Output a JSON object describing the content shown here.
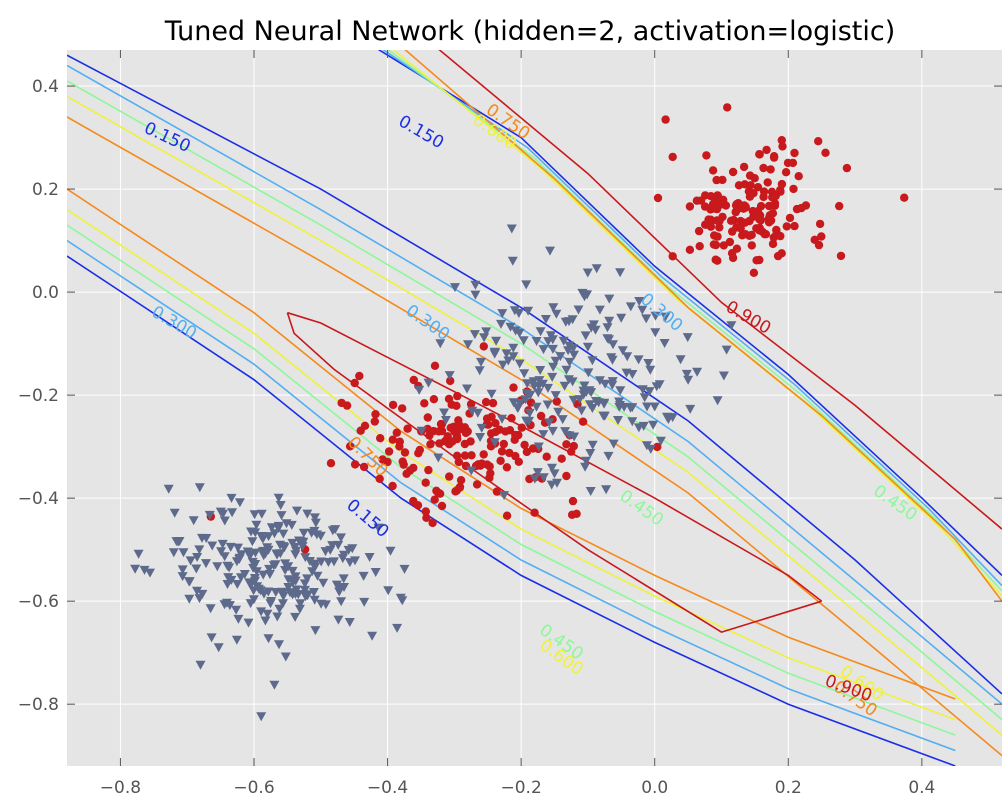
{
  "chart_data": {
    "type": "scatter",
    "title": "Tuned Neural Network (hidden=2, activation=logistic)",
    "xlabel": "",
    "ylabel": "",
    "xlim": [
      -0.88,
      0.52
    ],
    "ylim": [
      -0.92,
      0.47
    ],
    "x_ticks": [
      -0.8,
      -0.6,
      -0.4,
      -0.2,
      0.0,
      0.2,
      0.4
    ],
    "y_ticks": [
      -0.8,
      -0.6,
      -0.4,
      -0.2,
      0.0,
      0.2,
      0.4
    ],
    "x_tick_labels": [
      "−0.8",
      "−0.6",
      "−0.4",
      "−0.2",
      "0.0",
      "0.2",
      "0.4"
    ],
    "y_tick_labels": [
      "−0.8",
      "−0.6",
      "−0.4",
      "−0.2",
      "0.0",
      "0.2",
      "0.4"
    ],
    "grid": true,
    "background": "#e5e5e5",
    "series": [
      {
        "marker": "circle",
        "color": "#c8191d",
        "clusters": [
          {
            "center": [
              0.14,
              0.16
            ],
            "spread": [
              0.06,
              0.06
            ],
            "count": 160
          },
          {
            "center": [
              -0.28,
              -0.29
            ],
            "spread": [
              0.09,
              0.06
            ],
            "count": 170
          }
        ]
      },
      {
        "marker": "triangle-down",
        "color": "#5d6a8c",
        "clusters": [
          {
            "center": [
              -0.57,
              -0.54
            ],
            "spread": [
              0.085,
              0.07
            ],
            "count": 230
          },
          {
            "center": [
              -0.13,
              -0.16
            ],
            "spread": [
              0.09,
              0.1
            ],
            "count": 220
          }
        ]
      }
    ],
    "contours": [
      {
        "level": 0.15,
        "label": "0.150",
        "color": "#1a2ee6",
        "lines": [
          {
            "points": [
              [
                -0.88,
                0.46
              ],
              [
                -0.5,
                0.2
              ],
              [
                -0.2,
                -0.03
              ],
              [
                0.05,
                -0.25
              ],
              [
                0.3,
                -0.52
              ],
              [
                0.52,
                -0.78
              ]
            ]
          },
          {
            "points": [
              [
                -0.88,
                0.07
              ],
              [
                -0.6,
                -0.17
              ],
              [
                -0.38,
                -0.4
              ],
              [
                -0.2,
                -0.55
              ],
              [
                0.0,
                -0.68
              ],
              [
                0.2,
                -0.8
              ],
              [
                0.45,
                -0.92
              ]
            ]
          },
          {
            "points": [
              [
                -0.45,
                0.5
              ],
              [
                -0.2,
                0.3
              ],
              [
                0.0,
                0.05
              ],
              [
                0.2,
                -0.16
              ],
              [
                0.4,
                -0.4
              ],
              [
                0.52,
                -0.55
              ]
            ]
          }
        ]
      },
      {
        "level": 0.3,
        "label": "0.300",
        "color": "#53aef2",
        "lines": [
          {
            "points": [
              [
                -0.88,
                0.44
              ],
              [
                -0.5,
                0.16
              ],
              [
                -0.2,
                -0.07
              ],
              [
                0.05,
                -0.29
              ],
              [
                0.3,
                -0.56
              ],
              [
                0.52,
                -0.8
              ]
            ]
          },
          {
            "points": [
              [
                -0.88,
                0.1
              ],
              [
                -0.6,
                -0.14
              ],
              [
                -0.38,
                -0.37
              ],
              [
                -0.2,
                -0.52
              ],
              [
                0.0,
                -0.65
              ],
              [
                0.2,
                -0.77
              ],
              [
                0.45,
                -0.89
              ]
            ]
          },
          {
            "points": [
              [
                -0.44,
                0.5
              ],
              [
                -0.19,
                0.28
              ],
              [
                0.01,
                0.03
              ],
              [
                0.21,
                -0.18
              ],
              [
                0.41,
                -0.42
              ],
              [
                0.52,
                -0.57
              ]
            ]
          }
        ]
      },
      {
        "level": 0.45,
        "label": "0.450",
        "color": "#8ef79a",
        "lines": [
          {
            "points": [
              [
                -0.88,
                0.41
              ],
              [
                -0.5,
                0.13
              ],
              [
                -0.2,
                -0.1
              ],
              [
                0.05,
                -0.32
              ],
              [
                0.3,
                -0.59
              ],
              [
                0.52,
                -0.83
              ]
            ]
          },
          {
            "points": [
              [
                -0.88,
                0.13
              ],
              [
                -0.6,
                -0.11
              ],
              [
                -0.38,
                -0.34
              ],
              [
                -0.2,
                -0.49
              ],
              [
                0.0,
                -0.62
              ],
              [
                0.2,
                -0.74
              ],
              [
                0.45,
                -0.86
              ]
            ]
          },
          {
            "points": [
              [
                -0.43,
                0.5
              ],
              [
                -0.18,
                0.26
              ],
              [
                0.02,
                0.01
              ],
              [
                0.22,
                -0.2
              ],
              [
                0.42,
                -0.44
              ],
              [
                0.52,
                -0.58
              ]
            ]
          }
        ]
      },
      {
        "level": 0.6,
        "label": "0.600",
        "color": "#eef23c",
        "lines": [
          {
            "points": [
              [
                -0.88,
                0.38
              ],
              [
                -0.5,
                0.1
              ],
              [
                -0.2,
                -0.13
              ],
              [
                0.05,
                -0.35
              ],
              [
                0.3,
                -0.62
              ],
              [
                0.52,
                -0.86
              ]
            ]
          },
          {
            "points": [
              [
                -0.88,
                0.16
              ],
              [
                -0.6,
                -0.08
              ],
              [
                -0.38,
                -0.31
              ],
              [
                -0.2,
                -0.46
              ],
              [
                0.0,
                -0.59
              ],
              [
                0.2,
                -0.71
              ],
              [
                0.45,
                -0.83
              ]
            ]
          },
          {
            "points": [
              [
                -0.42,
                0.5
              ],
              [
                -0.17,
                0.24
              ],
              [
                0.03,
                -0.01
              ],
              [
                0.23,
                -0.22
              ],
              [
                0.43,
                -0.46
              ],
              [
                0.52,
                -0.59
              ]
            ]
          }
        ]
      },
      {
        "level": 0.75,
        "label": "0.750",
        "color": "#f5891b",
        "lines": [
          {
            "points": [
              [
                -0.88,
                0.34
              ],
              [
                -0.5,
                0.06
              ],
              [
                -0.2,
                -0.17
              ],
              [
                0.05,
                -0.39
              ],
              [
                0.3,
                -0.66
              ],
              [
                0.52,
                -0.9
              ]
            ]
          },
          {
            "points": [
              [
                -0.88,
                0.2
              ],
              [
                -0.6,
                -0.04
              ],
              [
                -0.38,
                -0.27
              ],
              [
                -0.2,
                -0.42
              ],
              [
                0.0,
                -0.55
              ],
              [
                0.2,
                -0.67
              ],
              [
                0.45,
                -0.79
              ]
            ]
          },
          {
            "points": [
              [
                -0.4,
                0.5
              ],
              [
                -0.15,
                0.22
              ],
              [
                0.05,
                -0.03
              ],
              [
                0.25,
                -0.24
              ],
              [
                0.45,
                -0.48
              ],
              [
                0.52,
                -0.6
              ]
            ]
          }
        ]
      },
      {
        "level": 0.9,
        "label": "0.900",
        "color": "#c8191d",
        "lines": [
          {
            "points": [
              [
                -0.55,
                -0.04
              ],
              [
                -0.5,
                -0.06
              ],
              [
                -0.38,
                -0.14
              ],
              [
                -0.2,
                -0.26
              ],
              [
                0.0,
                -0.4
              ],
              [
                0.2,
                -0.55
              ],
              [
                0.25,
                -0.6
              ]
            ]
          },
          {
            "points": [
              [
                0.25,
                -0.6
              ],
              [
                0.1,
                -0.66
              ],
              [
                -0.1,
                -0.5
              ],
              [
                -0.3,
                -0.32
              ],
              [
                -0.48,
                -0.15
              ],
              [
                -0.54,
                -0.08
              ],
              [
                -0.55,
                -0.04
              ]
            ]
          },
          {
            "points": [
              [
                -0.35,
                0.5
              ],
              [
                -0.1,
                0.23
              ],
              [
                0.1,
                -0.02
              ],
              [
                0.3,
                -0.22
              ],
              [
                0.52,
                -0.46
              ]
            ]
          }
        ]
      }
    ],
    "contour_labels": [
      {
        "text": "0.150",
        "at": [
          -0.73,
          0.3
        ],
        "angle": 25,
        "color": "#1a2ee6"
      },
      {
        "text": "0.150",
        "at": [
          -0.35,
          0.31
        ],
        "angle": 30,
        "color": "#1a2ee6"
      },
      {
        "text": "0.150",
        "at": [
          -0.43,
          -0.44
        ],
        "angle": 40,
        "color": "#1a2ee6"
      },
      {
        "text": "0.300",
        "at": [
          -0.72,
          -0.06
        ],
        "angle": 30,
        "color": "#53aef2"
      },
      {
        "text": "0.300",
        "at": [
          -0.34,
          -0.06
        ],
        "angle": 35,
        "color": "#53aef2"
      },
      {
        "text": "0.300",
        "at": [
          0.01,
          -0.04
        ],
        "angle": 40,
        "color": "#53aef2"
      },
      {
        "text": "0.450",
        "at": [
          -0.02,
          -0.42
        ],
        "angle": 35,
        "color": "#8ef79a"
      },
      {
        "text": "0.450",
        "at": [
          0.36,
          -0.41
        ],
        "angle": 35,
        "color": "#8ef79a"
      },
      {
        "text": "0.450",
        "at": [
          -0.14,
          -0.68
        ],
        "angle": 35,
        "color": "#8ef79a"
      },
      {
        "text": "0.600",
        "at": [
          -0.24,
          0.31
        ],
        "angle": 35,
        "color": "#eef23c"
      },
      {
        "text": "0.600",
        "at": [
          -0.14,
          -0.71
        ],
        "angle": 35,
        "color": "#eef23c"
      },
      {
        "text": "0.600",
        "at": [
          0.31,
          -0.76
        ],
        "angle": 35,
        "color": "#eef23c"
      },
      {
        "text": "0.750",
        "at": [
          -0.22,
          0.33
        ],
        "angle": 35,
        "color": "#f5891b"
      },
      {
        "text": "0.750",
        "at": [
          -0.43,
          -0.32
        ],
        "angle": 45,
        "color": "#f5891b"
      },
      {
        "text": "0.750",
        "at": [
          0.3,
          -0.79
        ],
        "angle": 35,
        "color": "#f5891b"
      },
      {
        "text": "0.900",
        "at": [
          0.14,
          -0.05
        ],
        "angle": 30,
        "color": "#c8191d"
      },
      {
        "text": "0.900",
        "at": [
          0.29,
          -0.77
        ],
        "angle": 20,
        "color": "#c8191d"
      }
    ]
  }
}
